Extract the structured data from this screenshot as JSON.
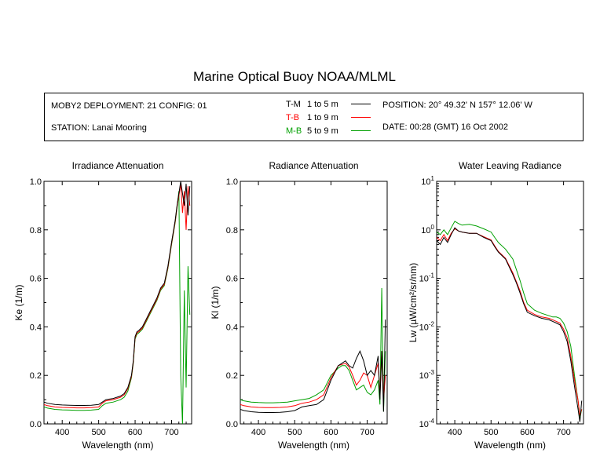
{
  "title": "Marine Optical Buoy NOAA/MLML",
  "info": {
    "deployment": "MOBY2 DEPLOYMENT: 21 CONFIG: 01",
    "station": "STATION: Lanai Mooring",
    "position": "POSITION: 20° 49.32' N   157° 12.06' W",
    "date": "DATE: 00:28 (GMT) 16 Oct 2002"
  },
  "legend": [
    {
      "code": "T-M",
      "range": "1 to 5  m",
      "color": "#000000"
    },
    {
      "code": "T-B",
      "range": "1 to 9  m",
      "color": "#ff0000"
    },
    {
      "code": "M-B",
      "range": "5 to 9  m",
      "color": "#00a000"
    }
  ],
  "chart_data": [
    {
      "type": "line",
      "title": "Irradiance Attenuation",
      "xlabel": "Wavelength (nm)",
      "ylabel": "Ke  (1/m)",
      "xlim": [
        350,
        755
      ],
      "ylim": [
        0,
        1
      ],
      "xticks": [
        400,
        500,
        600,
        700
      ],
      "yticks": [
        "0.0",
        "0.2",
        "0.4",
        "0.6",
        "0.8",
        "1.0"
      ],
      "grid": false,
      "series": [
        {
          "name": "T-M",
          "color": "#000000",
          "x": [
            350,
            360,
            380,
            400,
            420,
            440,
            460,
            480,
            500,
            510,
            520,
            540,
            560,
            570,
            580,
            590,
            595,
            600,
            605,
            610,
            620,
            630,
            640,
            650,
            660,
            670,
            680,
            690,
            700,
            710,
            715,
            720,
            725,
            730,
            735,
            740,
            745,
            750
          ],
          "y": [
            0.09,
            0.085,
            0.08,
            0.078,
            0.077,
            0.076,
            0.076,
            0.077,
            0.08,
            0.09,
            0.1,
            0.105,
            0.115,
            0.125,
            0.15,
            0.2,
            0.26,
            0.36,
            0.38,
            0.385,
            0.4,
            0.43,
            0.46,
            0.49,
            0.52,
            0.56,
            0.58,
            0.65,
            0.75,
            0.84,
            0.9,
            0.95,
            1.0,
            0.95,
            0.9,
            0.99,
            0.86,
            0.98
          ]
        },
        {
          "name": "T-B",
          "color": "#ff0000",
          "x": [
            350,
            360,
            380,
            400,
            420,
            440,
            460,
            480,
            500,
            510,
            520,
            540,
            560,
            570,
            580,
            590,
            595,
            600,
            605,
            610,
            620,
            630,
            640,
            650,
            660,
            670,
            680,
            690,
            700,
            710,
            715,
            720,
            725,
            730,
            735,
            740,
            745,
            750
          ],
          "y": [
            0.08,
            0.075,
            0.07,
            0.068,
            0.067,
            0.066,
            0.066,
            0.067,
            0.07,
            0.085,
            0.095,
            0.1,
            0.11,
            0.12,
            0.145,
            0.195,
            0.255,
            0.355,
            0.375,
            0.38,
            0.395,
            0.425,
            0.455,
            0.485,
            0.515,
            0.555,
            0.575,
            0.645,
            0.745,
            0.835,
            0.895,
            0.94,
            0.99,
            0.87,
            0.96,
            0.8,
            0.98,
            0.9
          ]
        },
        {
          "name": "M-B",
          "color": "#00a000",
          "x": [
            350,
            360,
            380,
            400,
            420,
            440,
            460,
            480,
            500,
            510,
            520,
            540,
            560,
            570,
            580,
            590,
            595,
            600,
            605,
            610,
            620,
            630,
            640,
            650,
            660,
            670,
            680,
            690,
            700,
            710,
            715,
            720,
            725,
            730,
            735,
            740,
            745,
            750
          ],
          "y": [
            0.07,
            0.065,
            0.06,
            0.058,
            0.057,
            0.056,
            0.056,
            0.057,
            0.06,
            0.075,
            0.085,
            0.09,
            0.1,
            0.11,
            0.135,
            0.19,
            0.25,
            0.35,
            0.37,
            0.375,
            0.39,
            0.42,
            0.45,
            0.48,
            0.51,
            0.55,
            0.57,
            0.64,
            0.74,
            0.83,
            0.89,
            0.96,
            0.2,
            0.0,
            0.55,
            0.15,
            0.65,
            0.45
          ]
        }
      ]
    },
    {
      "type": "line",
      "title": "Radiance Attenuation",
      "xlabel": "Wavelength (nm)",
      "ylabel": "Kl  (1/m)",
      "xlim": [
        350,
        755
      ],
      "ylim": [
        0,
        1
      ],
      "xticks": [
        400,
        500,
        600,
        700
      ],
      "yticks": [
        "0.0",
        "0.2",
        "0.4",
        "0.6",
        "0.8",
        "1.0"
      ],
      "grid": false,
      "series": [
        {
          "name": "T-M",
          "color": "#000000",
          "x": [
            350,
            360,
            380,
            400,
            420,
            440,
            460,
            480,
            500,
            520,
            540,
            560,
            580,
            600,
            620,
            630,
            640,
            650,
            660,
            670,
            680,
            690,
            700,
            710,
            720,
            730,
            735,
            740,
            745,
            750
          ],
          "y": [
            0.06,
            0.055,
            0.05,
            0.048,
            0.047,
            0.047,
            0.048,
            0.05,
            0.055,
            0.07,
            0.075,
            0.08,
            0.1,
            0.18,
            0.24,
            0.25,
            0.26,
            0.24,
            0.23,
            0.27,
            0.3,
            0.26,
            0.2,
            0.22,
            0.2,
            0.28,
            0.1,
            0.3,
            0.05,
            0.43
          ]
        },
        {
          "name": "T-B",
          "color": "#ff0000",
          "x": [
            350,
            360,
            380,
            400,
            420,
            440,
            460,
            480,
            500,
            520,
            540,
            560,
            580,
            600,
            620,
            630,
            640,
            650,
            660,
            670,
            680,
            690,
            700,
            710,
            720,
            730,
            735,
            740,
            745,
            750
          ],
          "y": [
            0.08,
            0.075,
            0.07,
            0.068,
            0.067,
            0.067,
            0.068,
            0.07,
            0.075,
            0.085,
            0.09,
            0.1,
            0.12,
            0.19,
            0.24,
            0.245,
            0.25,
            0.235,
            0.2,
            0.16,
            0.18,
            0.21,
            0.2,
            0.15,
            0.2,
            0.25,
            0.12,
            0.3,
            0.1,
            0.2
          ]
        },
        {
          "name": "M-B",
          "color": "#00a000",
          "x": [
            350,
            360,
            380,
            400,
            420,
            440,
            460,
            480,
            500,
            520,
            540,
            560,
            580,
            600,
            620,
            630,
            640,
            650,
            660,
            670,
            680,
            690,
            700,
            710,
            720,
            730,
            735,
            740,
            745,
            750
          ],
          "y": [
            0.1,
            0.095,
            0.09,
            0.088,
            0.087,
            0.087,
            0.088,
            0.09,
            0.095,
            0.1,
            0.105,
            0.12,
            0.14,
            0.2,
            0.23,
            0.24,
            0.24,
            0.22,
            0.18,
            0.14,
            0.15,
            0.16,
            0.13,
            0.12,
            0.14,
            0.18,
            0.08,
            0.56,
            0.05,
            0.3
          ]
        }
      ]
    },
    {
      "type": "line",
      "title": "Water Leaving Radiance",
      "xlabel": "Wavelength (nm)",
      "ylabel": "Lw  (µW/cm²/sr/nm)",
      "xlim": [
        350,
        755
      ],
      "ylim": [
        0.0001,
        10
      ],
      "yscale": "log",
      "xticks": [
        400,
        500,
        600,
        700
      ],
      "ytick_labels": [
        {
          "base": "10",
          "exp": "1"
        },
        {
          "base": "10",
          "exp": "0"
        },
        {
          "base": "10",
          "exp": "-1"
        },
        {
          "base": "10",
          "exp": "-2"
        },
        {
          "base": "10",
          "exp": "-3"
        },
        {
          "base": "10",
          "exp": "-4"
        }
      ],
      "grid": false,
      "series": [
        {
          "name": "T-M",
          "color": "#000000",
          "x": [
            350,
            360,
            370,
            380,
            390,
            400,
            410,
            420,
            440,
            460,
            480,
            500,
            510,
            520,
            540,
            560,
            570,
            580,
            590,
            600,
            620,
            640,
            660,
            670,
            680,
            690,
            700,
            710,
            720,
            730,
            740,
            745,
            750
          ],
          "y": [
            0.6,
            0.5,
            0.7,
            0.55,
            0.8,
            1.1,
            0.95,
            0.9,
            0.85,
            0.85,
            0.7,
            0.6,
            0.45,
            0.35,
            0.25,
            0.12,
            0.08,
            0.05,
            0.03,
            0.02,
            0.017,
            0.015,
            0.014,
            0.013,
            0.012,
            0.011,
            0.008,
            0.005,
            0.002,
            0.0006,
            0.0002,
            0.00011,
            0.0003
          ]
        },
        {
          "name": "T-B",
          "color": "#ff0000",
          "x": [
            350,
            360,
            370,
            380,
            390,
            400,
            410,
            420,
            440,
            460,
            480,
            500,
            510,
            520,
            540,
            560,
            570,
            580,
            590,
            600,
            620,
            640,
            660,
            670,
            680,
            690,
            700,
            710,
            720,
            730,
            740,
            745,
            750
          ],
          "y": [
            0.7,
            0.6,
            0.8,
            0.6,
            0.85,
            1.05,
            0.95,
            0.9,
            0.85,
            0.85,
            0.72,
            0.62,
            0.47,
            0.36,
            0.26,
            0.13,
            0.085,
            0.055,
            0.032,
            0.022,
            0.018,
            0.016,
            0.015,
            0.014,
            0.013,
            0.012,
            0.009,
            0.006,
            0.0025,
            0.0008,
            0.0003,
            0.00015,
            0.0002
          ]
        },
        {
          "name": "M-B",
          "color": "#00a000",
          "x": [
            350,
            360,
            370,
            380,
            390,
            400,
            410,
            420,
            440,
            460,
            480,
            500,
            510,
            520,
            540,
            560,
            570,
            580,
            590,
            600,
            620,
            640,
            660,
            670,
            680,
            690,
            700,
            710,
            720,
            730,
            740,
            745,
            750
          ],
          "y": [
            0.9,
            0.8,
            1.0,
            0.8,
            1.1,
            1.5,
            1.35,
            1.25,
            1.3,
            1.2,
            1.05,
            0.9,
            0.7,
            0.55,
            0.4,
            0.25,
            0.15,
            0.09,
            0.05,
            0.03,
            0.022,
            0.019,
            0.017,
            0.016,
            0.016,
            0.015,
            0.012,
            0.008,
            0.004,
            0.001,
            0.0003,
            0.00013,
            0.0002
          ]
        }
      ]
    }
  ]
}
